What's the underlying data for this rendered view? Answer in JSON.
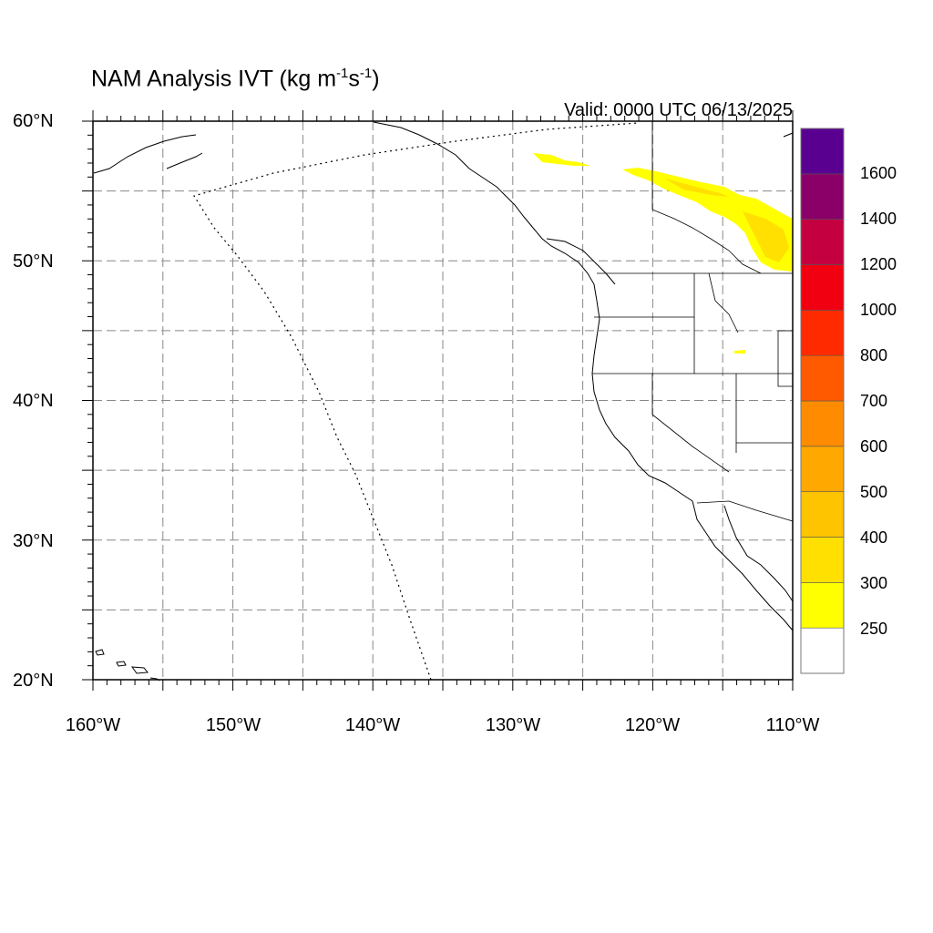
{
  "title": {
    "text_main": "NAM Analysis IVT (kg m",
    "sup1": "-1",
    "text_mid": "s",
    "sup2": "-1",
    "text_end": ")"
  },
  "valid_time": "Valid: 0000 UTC 06/13/2025",
  "map": {
    "lon_range": [
      -160,
      -110
    ],
    "lat_range": [
      20,
      60
    ],
    "lat_labels": [
      "20°N",
      "30°N",
      "40°N",
      "50°N",
      "60°N"
    ],
    "lon_labels": [
      "160°W",
      "150°W",
      "140°W",
      "130°W",
      "120°W",
      "110°W"
    ],
    "grid_lon": [
      -155,
      -150,
      -145,
      -140,
      -135,
      -130,
      -125,
      -120,
      -115
    ],
    "grid_lat": [
      25,
      30,
      35,
      40,
      45,
      50,
      55
    ]
  },
  "colorbar": {
    "labels": [
      "250",
      "300",
      "400",
      "500",
      "600",
      "700",
      "800",
      "1000",
      "1200",
      "1400",
      "1600"
    ],
    "colors": [
      "#ffffff",
      "#ffff00",
      "#ffe000",
      "#ffc400",
      "#ffa800",
      "#ff8c00",
      "#ff5a00",
      "#ff2a00",
      "#f00010",
      "#c40040",
      "#8a0068",
      "#5a0090"
    ]
  }
}
